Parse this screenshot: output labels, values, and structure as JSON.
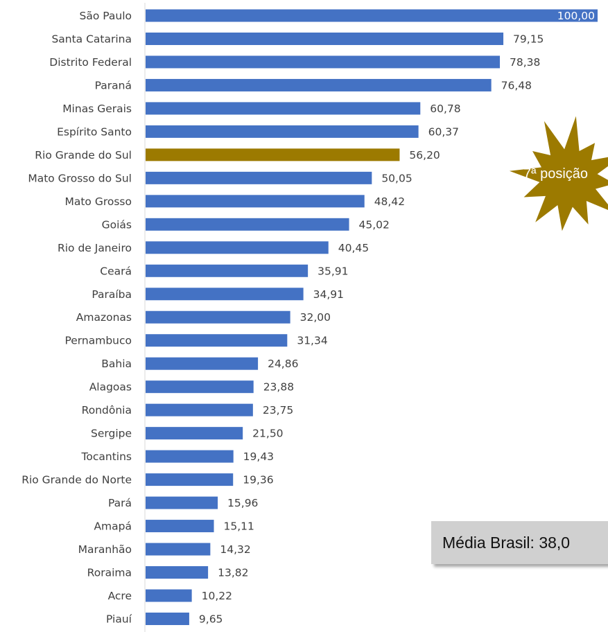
{
  "chart_data": {
    "type": "bar",
    "orientation": "horizontal",
    "categories": [
      "São Paulo",
      "Santa Catarina",
      "Distrito Federal",
      "Paraná",
      "Minas Gerais",
      "Espírito Santo",
      "Rio Grande do Sul",
      "Mato Grosso do Sul",
      "Mato Grosso",
      "Goiás",
      "Rio de Janeiro",
      "Ceará",
      "Paraíba",
      "Amazonas",
      "Pernambuco",
      "Bahia",
      "Alagoas",
      "Rondônia",
      "Sergipe",
      "Tocantins",
      "Rio Grande do Norte",
      "Pará",
      "Amapá",
      "Maranhão",
      "Roraima",
      "Acre",
      "Piauí"
    ],
    "values": [
      100.0,
      79.15,
      78.38,
      76.48,
      60.78,
      60.37,
      56.2,
      50.05,
      48.42,
      45.02,
      40.45,
      35.91,
      34.91,
      32.0,
      31.34,
      24.86,
      23.88,
      23.75,
      21.5,
      19.43,
      19.36,
      15.96,
      15.11,
      14.32,
      13.82,
      10.22,
      9.65
    ],
    "value_labels": [
      "100,00",
      "79,15",
      "78,38",
      "76,48",
      "60,78",
      "60,37",
      "56,20",
      "50,05",
      "48,42",
      "45,02",
      "40,45",
      "35,91",
      "34,91",
      "32,00",
      "31,34",
      "24,86",
      "23,88",
      "23,75",
      "21,50",
      "19,43",
      "19,36",
      "15,96",
      "15,11",
      "14,32",
      "13,82",
      "10,22",
      "9,65"
    ],
    "highlight_category": "Rio Grande do Sul",
    "colors": {
      "bar": "#4472c4",
      "highlight": "#9c7a00",
      "star": "#9c7a00",
      "axis": "#d9d9d9",
      "label": "#404040"
    },
    "xlim": [
      0,
      100
    ],
    "grid": false,
    "legend": "none"
  },
  "annotations": {
    "star_text": "7ª posição",
    "media_text": "Média Brasil: 38,0"
  }
}
